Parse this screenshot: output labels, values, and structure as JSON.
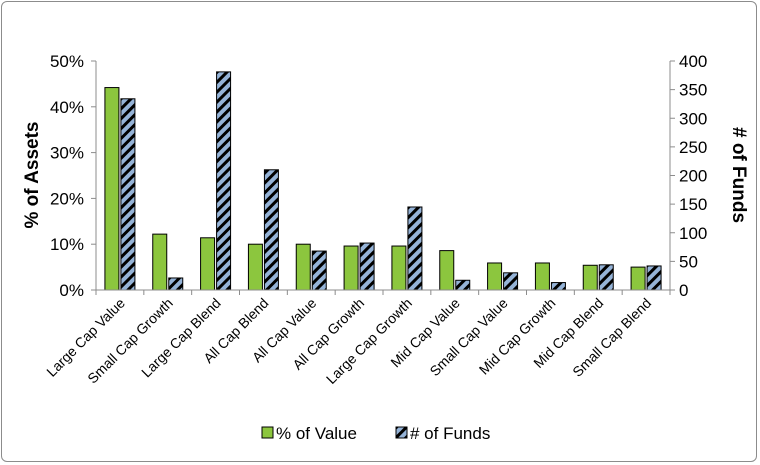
{
  "chart_data": {
    "type": "bar",
    "categories": [
      "Large Cap Value",
      "Small Cap Growth",
      "Large Cap Blend",
      "All Cap Blend",
      "All Cap Value",
      "All Cap Growth",
      "Large Cap Growth",
      "Mid Cap Value",
      "Small Cap Value",
      "Mid Cap Growth",
      "Mid Cap Blend",
      "Small Cap Blend"
    ],
    "series": [
      {
        "name": "% of Value",
        "axis": "left",
        "color": "#8cc63e",
        "pattern": "solid",
        "values": [
          44.2,
          12.2,
          11.4,
          10.0,
          10.0,
          9.6,
          9.6,
          8.6,
          5.9,
          5.9,
          5.4,
          5.0
        ]
      },
      {
        "name": "# of Funds",
        "axis": "right",
        "color": "#95b3d7",
        "pattern": "diagonal-stripes-black",
        "values": [
          334,
          21,
          381,
          210,
          68,
          82,
          145,
          17,
          30,
          13,
          44,
          42
        ]
      }
    ],
    "ylabel": "% of Assets",
    "ylabel_right": "# of Funds",
    "ylim": [
      0,
      50
    ],
    "ylim_right": [
      0,
      400
    ],
    "yticks": [
      "0%",
      "10%",
      "20%",
      "30%",
      "40%",
      "50%"
    ],
    "yticks_right": [
      "0",
      "50",
      "100",
      "150",
      "200",
      "250",
      "300",
      "350",
      "400"
    ],
    "grid": false,
    "legend_position": "bottom"
  }
}
